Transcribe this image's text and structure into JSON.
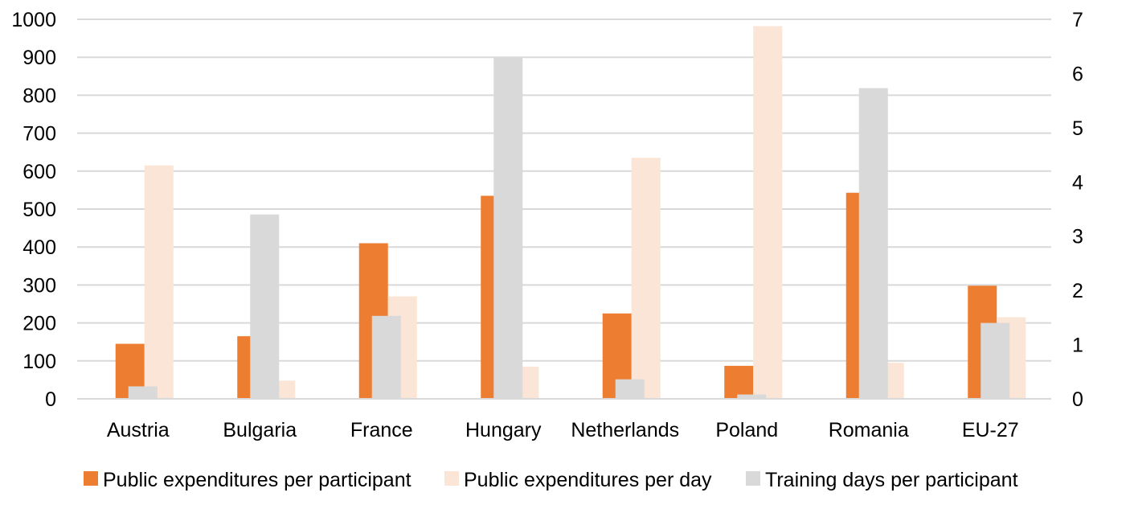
{
  "chart_data": {
    "type": "bar",
    "categories": [
      "Austria",
      "Bulgaria",
      "France",
      "Hungary",
      "Netherlands",
      "Poland",
      "Romania",
      "EU-27"
    ],
    "series": [
      {
        "name": "Public expenditures per participant",
        "axis": "left",
        "color": "#ED7D31",
        "values": [
          145,
          165,
          410,
          535,
          225,
          87,
          543,
          298
        ]
      },
      {
        "name": "Public expenditures per day",
        "axis": "left",
        "color": "#FBE5D6",
        "values": [
          615,
          48,
          270,
          85,
          635,
          982,
          95,
          215
        ]
      },
      {
        "name": "Training days per participant",
        "axis": "right",
        "color": "#D9D9D9",
        "values": [
          0.23,
          3.4,
          1.53,
          6.3,
          0.36,
          0.08,
          5.73,
          1.4
        ]
      }
    ],
    "y_left": {
      "min": 0,
      "max": 1000,
      "ticks": [
        "0",
        "100",
        "200",
        "300",
        "400",
        "500",
        "600",
        "700",
        "800",
        "900",
        "1000"
      ]
    },
    "y_right": {
      "min": 0,
      "max": 7,
      "ticks": [
        "0",
        "1",
        "2",
        "3",
        "4",
        "5",
        "6",
        "7"
      ]
    },
    "grid": true,
    "gridline_color": "#D9D9D9",
    "legend_position": "bottom",
    "title": "",
    "xlabel": "",
    "ylabel": ""
  }
}
